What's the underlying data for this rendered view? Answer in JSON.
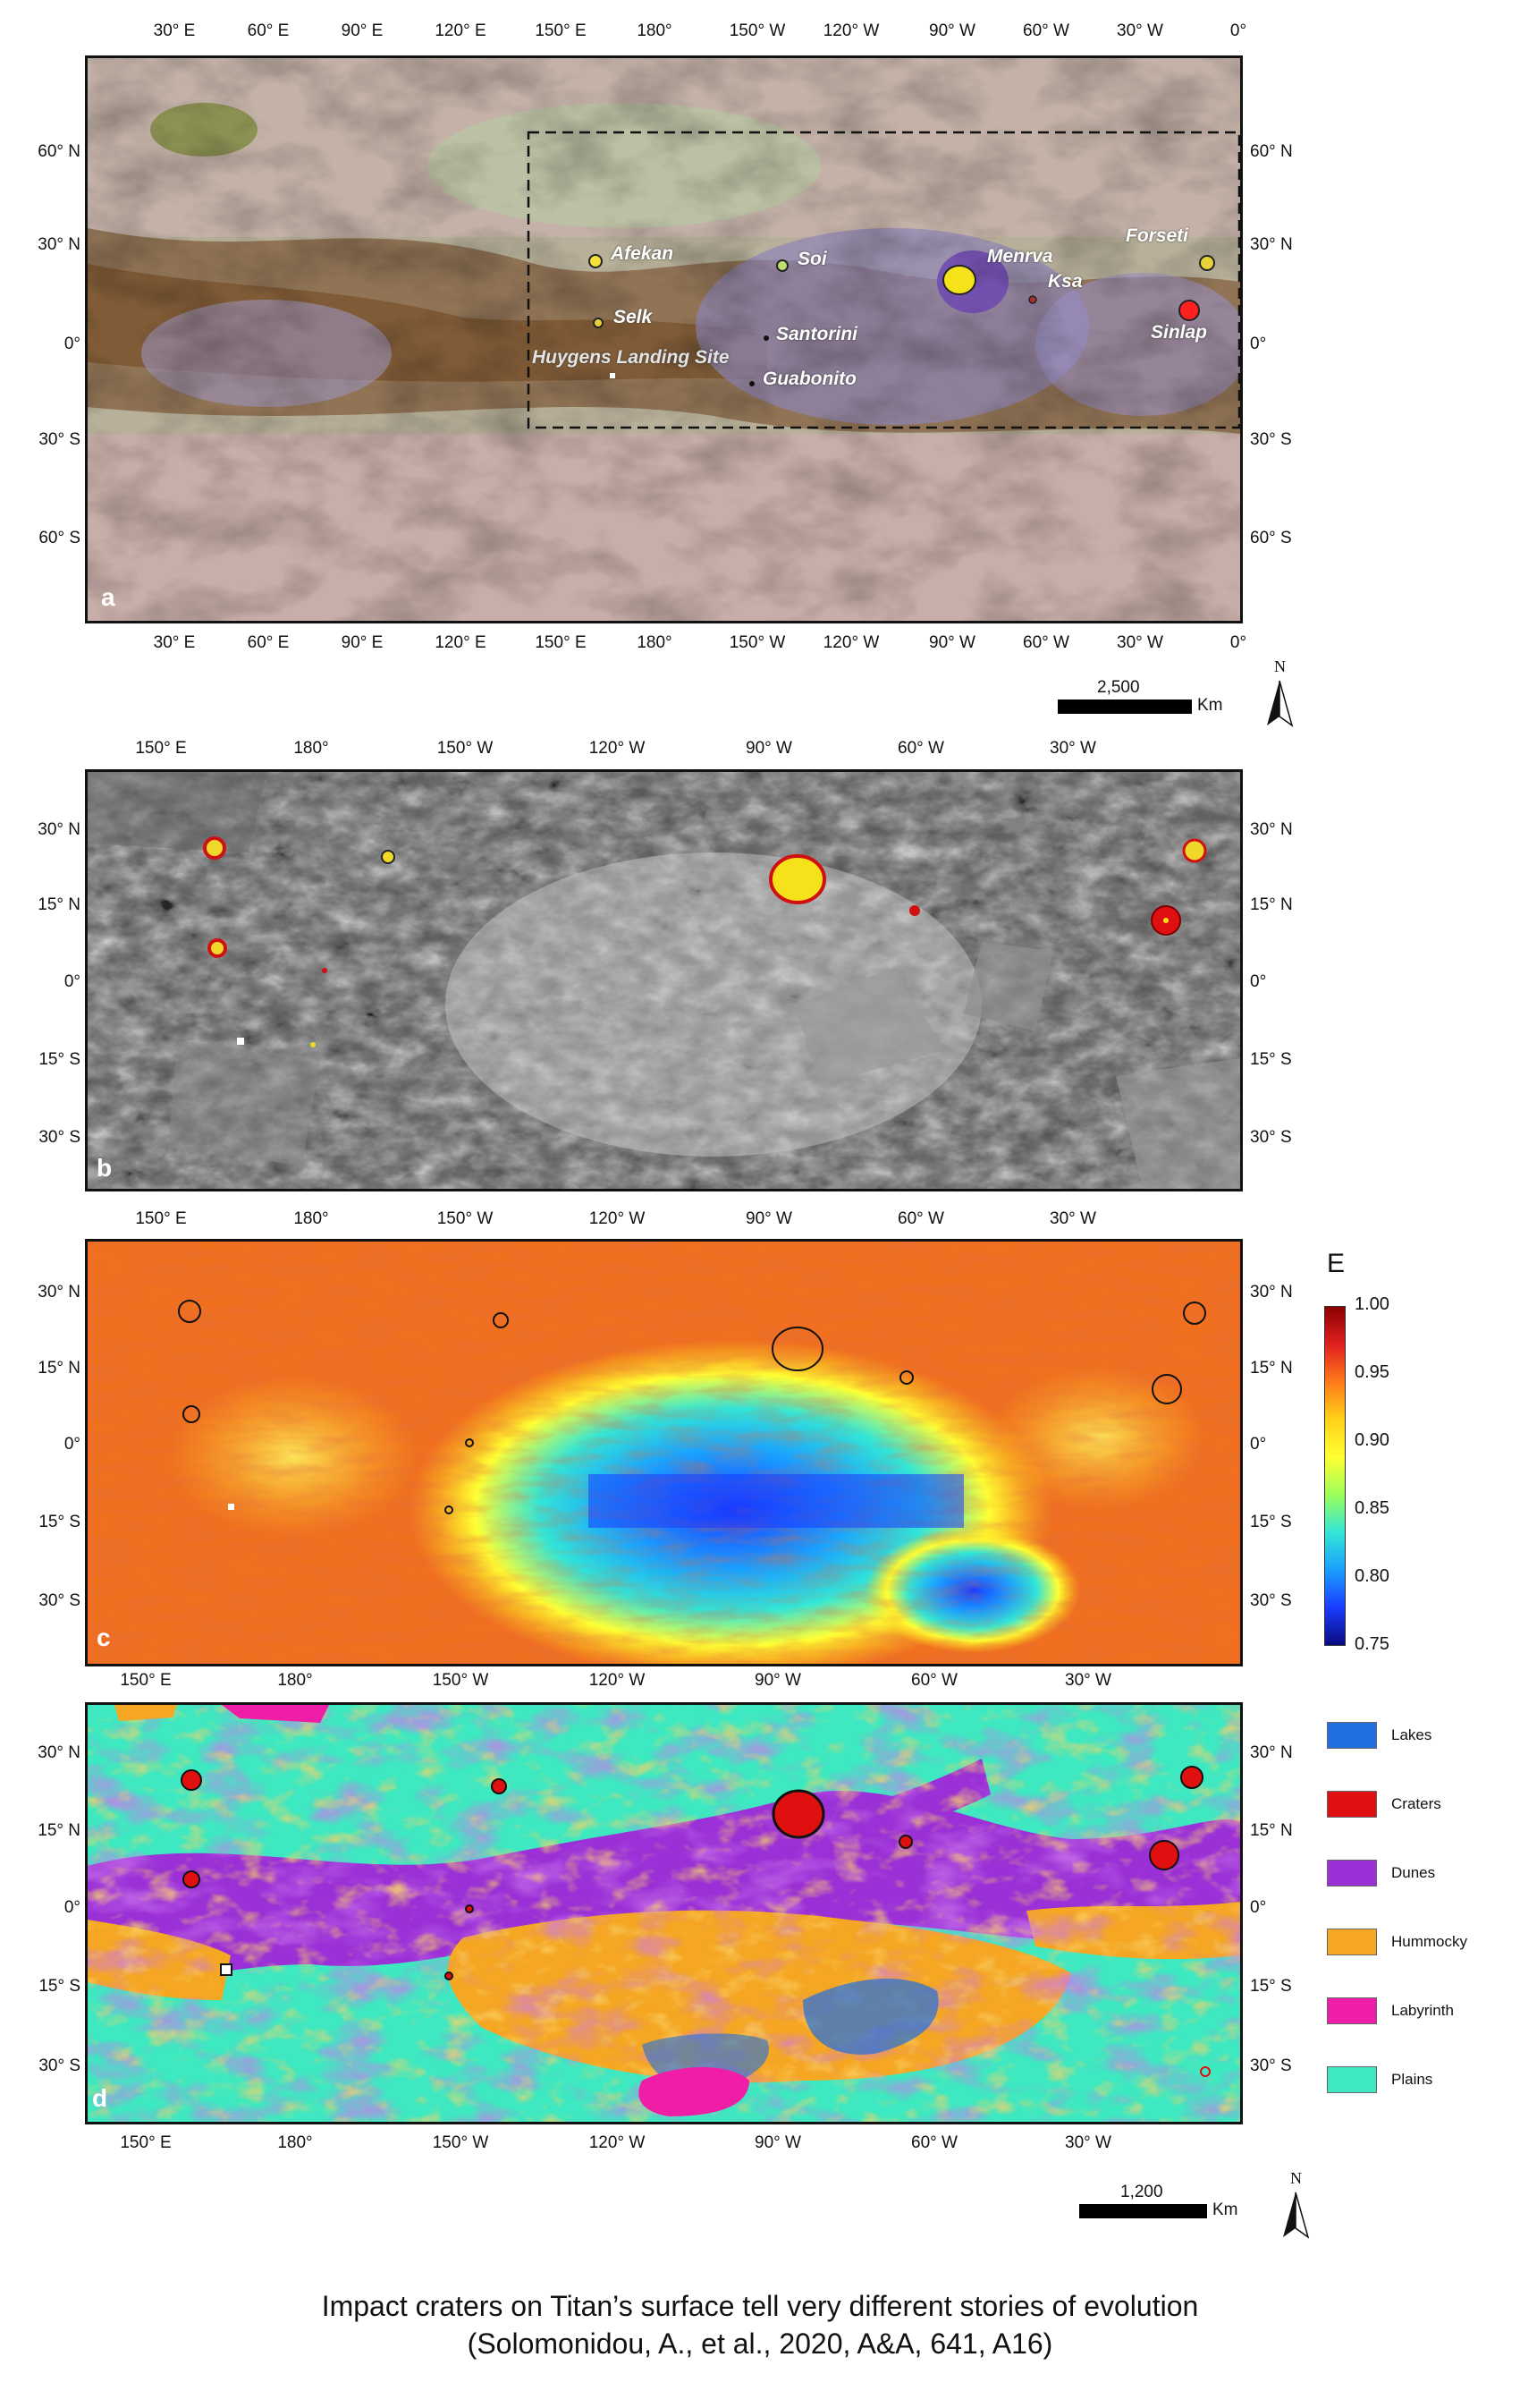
{
  "panels": {
    "a": {
      "letter": "a",
      "top_ticks": [
        "30° E",
        "60° E",
        "90° E",
        "120° E",
        "150° E",
        "180°",
        "150° W",
        "120° W",
        "90° W",
        "60° W",
        "30° W",
        "0°"
      ],
      "bottom_ticks": [
        "30° E",
        "60° E",
        "90° E",
        "120° E",
        "150° E",
        "180°",
        "150° W",
        "120° W",
        "90° W",
        "60° W",
        "30° W",
        "0°"
      ],
      "left_ticks": [
        "60° N",
        "30° N",
        "0°",
        "30° S",
        "60° S"
      ],
      "right_ticks": [
        "60° N",
        "30° N",
        "0°",
        "30° S",
        "60° S"
      ],
      "features": [
        {
          "name": "Afekan"
        },
        {
          "name": "Soi"
        },
        {
          "name": "Menrva"
        },
        {
          "name": "Ksa"
        },
        {
          "name": "Forseti"
        },
        {
          "name": "Selk"
        },
        {
          "name": "Santorini"
        },
        {
          "name": "Sinlap"
        },
        {
          "name": "Huygens Landing Site"
        },
        {
          "name": "Guabonito"
        }
      ]
    },
    "b": {
      "letter": "b",
      "top_ticks": [
        "150° E",
        "180°",
        "150° W",
        "120° W",
        "90° W",
        "60° W",
        "30° W"
      ],
      "left_ticks": [
        "30° N",
        "15° N",
        "0°",
        "15° S",
        "30° S"
      ],
      "right_ticks": [
        "30° N",
        "15° N",
        "0°",
        "15° S",
        "30° S"
      ]
    },
    "c": {
      "letter": "c",
      "top_ticks": [
        "150° E",
        "180°",
        "150° W",
        "120° W",
        "90° W",
        "60° W",
        "30° W"
      ],
      "left_ticks": [
        "30° N",
        "15° N",
        "0°",
        "15° S",
        "30° S"
      ],
      "right_ticks": [
        "30° N",
        "15° N",
        "0°",
        "15° S",
        "30° S"
      ]
    },
    "d": {
      "letter": "d",
      "top_ticks": [
        "150° E",
        "180°",
        "150° W",
        "120° W",
        "90° W",
        "60° W",
        "30° W"
      ],
      "bottom_ticks": [
        "150° E",
        "180°",
        "150° W",
        "120° W",
        "90° W",
        "60° W",
        "30° W"
      ],
      "left_ticks": [
        "30° N",
        "15° N",
        "0°",
        "15° S",
        "30° S"
      ],
      "right_ticks": [
        "30° N",
        "15° N",
        "0°",
        "15° S",
        "30° S"
      ]
    }
  },
  "scalebar_a": {
    "value": "2,500",
    "unit": "Km"
  },
  "scalebar_d": {
    "value": "1,200",
    "unit": "Km"
  },
  "north_label": "N",
  "colorbar": {
    "title": "E",
    "labels": [
      "1.00",
      "0.95",
      "0.90",
      "0.85",
      "0.80",
      "0.75"
    ],
    "stops": [
      "#8b0000",
      "#e02020",
      "#ff7a1a",
      "#ffd21a",
      "#ffff33",
      "#9cff5a",
      "#33e6d6",
      "#1aa0ff",
      "#1a3cff",
      "#0a0a80"
    ]
  },
  "legend": [
    {
      "label": "Lakes",
      "color": "#1f6fe0"
    },
    {
      "label": "Craters",
      "color": "#e01010"
    },
    {
      "label": "Dunes",
      "color": "#9b30d6"
    },
    {
      "label": "Hummocky",
      "color": "#f5a623"
    },
    {
      "label": "Labyrinth",
      "color": "#f01ea6"
    },
    {
      "label": "Plains",
      "color": "#3ee8c0"
    }
  ],
  "caption": {
    "line1": "Impact craters on Titan’s surface tell very different stories of evolution",
    "line2": "(Solomonidou, A., et al., 2020, A&A, 641, A16)"
  }
}
